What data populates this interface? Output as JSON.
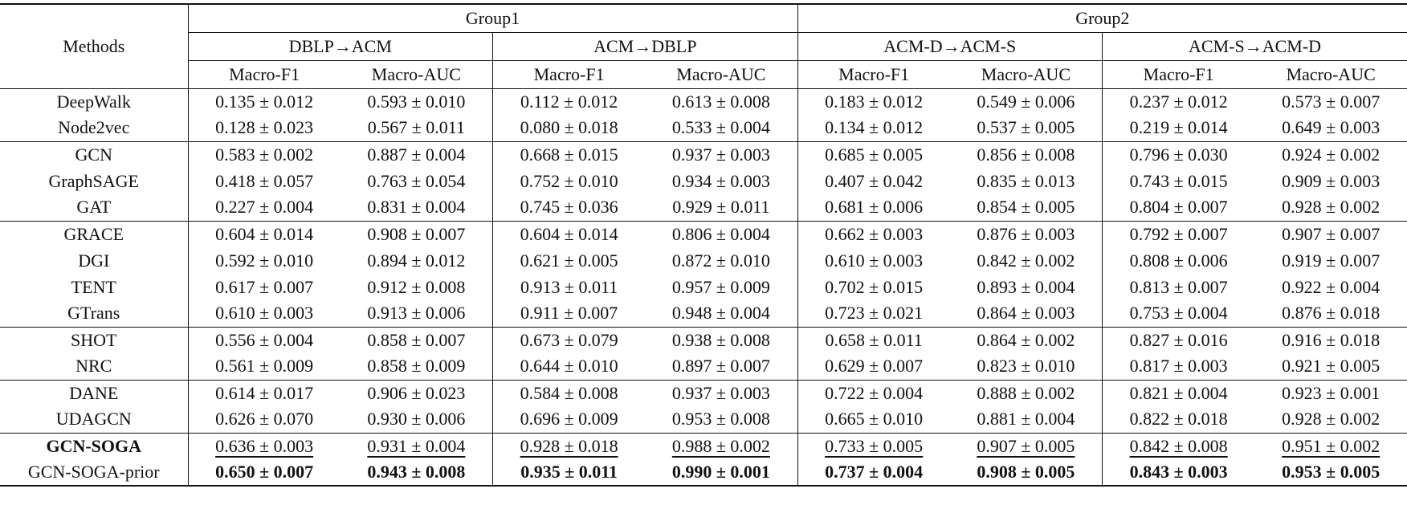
{
  "header": {
    "methods": "Methods",
    "groups": [
      {
        "label": "Group1",
        "tasks": [
          {
            "label": "DBLP→ACM",
            "metrics": [
              "Macro-F1",
              "Macro-AUC"
            ]
          },
          {
            "label": "ACM→DBLP",
            "metrics": [
              "Macro-F1",
              "Macro-AUC"
            ]
          }
        ]
      },
      {
        "label": "Group2",
        "tasks": [
          {
            "label": "ACM-D→ACM-S",
            "metrics": [
              "Macro-F1",
              "Macro-AUC"
            ]
          },
          {
            "label": "ACM-S→ACM-D",
            "metrics": [
              "Macro-F1",
              "Macro-AUC"
            ]
          }
        ]
      }
    ]
  },
  "sections": [
    [
      {
        "method": "DeepWalk",
        "cells": [
          "0.135 ± 0.012",
          "0.593 ± 0.010",
          "0.112 ± 0.012",
          "0.613 ± 0.008",
          "0.183 ± 0.012",
          "0.549 ± 0.006",
          "0.237 ± 0.012",
          "0.573 ± 0.007"
        ]
      },
      {
        "method": "Node2vec",
        "cells": [
          "0.128 ± 0.023",
          "0.567 ± 0.011",
          "0.080 ± 0.018",
          "0.533 ± 0.004",
          "0.134 ± 0.012",
          "0.537 ± 0.005",
          "0.219 ± 0.014",
          "0.649 ± 0.003"
        ]
      }
    ],
    [
      {
        "method": "GCN",
        "cells": [
          "0.583 ± 0.002",
          "0.887 ± 0.004",
          "0.668 ± 0.015",
          "0.937 ± 0.003",
          "0.685 ± 0.005",
          "0.856 ± 0.008",
          "0.796 ± 0.030",
          "0.924 ± 0.002"
        ]
      },
      {
        "method": "GraphSAGE",
        "cells": [
          "0.418 ± 0.057",
          "0.763 ± 0.054",
          "0.752 ± 0.010",
          "0.934 ± 0.003",
          "0.407 ± 0.042",
          "0.835 ± 0.013",
          "0.743 ± 0.015",
          "0.909 ± 0.003"
        ]
      },
      {
        "method": "GAT",
        "cells": [
          "0.227 ± 0.004",
          "0.831 ± 0.004",
          "0.745 ± 0.036",
          "0.929 ± 0.011",
          "0.681 ± 0.006",
          "0.854 ± 0.005",
          "0.804 ± 0.007",
          "0.928 ± 0.002"
        ]
      }
    ],
    [
      {
        "method": "GRACE",
        "cells": [
          "0.604 ± 0.014",
          "0.908 ± 0.007",
          "0.604 ± 0.014",
          "0.806 ± 0.004",
          "0.662 ± 0.003",
          "0.876 ± 0.003",
          "0.792 ± 0.007",
          "0.907 ± 0.007"
        ]
      },
      {
        "method": "DGI",
        "cells": [
          "0.592 ± 0.010",
          "0.894 ± 0.012",
          "0.621 ± 0.005",
          "0.872 ± 0.010",
          "0.610 ± 0.003",
          "0.842 ± 0.002",
          "0.808 ± 0.006",
          "0.919 ± 0.007"
        ]
      },
      {
        "method": "TENT",
        "cells": [
          "0.617 ± 0.007",
          "0.912 ± 0.008",
          "0.913 ± 0.011",
          "0.957 ± 0.009",
          "0.702 ± 0.015",
          "0.893 ± 0.004",
          "0.813 ± 0.007",
          "0.922 ± 0.004"
        ]
      },
      {
        "method": "GTrans",
        "cells": [
          "0.610 ± 0.003",
          "0.913 ± 0.006",
          "0.911 ± 0.007",
          "0.948 ± 0.004",
          "0.723 ± 0.021",
          "0.864 ± 0.003",
          "0.753 ± 0.004",
          "0.876 ± 0.018"
        ]
      }
    ],
    [
      {
        "method": "SHOT",
        "cells": [
          "0.556 ± 0.004",
          "0.858 ± 0.007",
          "0.673 ± 0.079",
          "0.938 ± 0.008",
          "0.658 ± 0.011",
          "0.864 ± 0.002",
          "0.827 ± 0.016",
          "0.916 ± 0.018"
        ]
      },
      {
        "method": "NRC",
        "cells": [
          "0.561 ± 0.009",
          "0.858 ± 0.009",
          "0.644 ± 0.010",
          "0.897 ± 0.007",
          "0.629 ± 0.007",
          "0.823 ± 0.010",
          "0.817 ± 0.003",
          "0.921 ± 0.005"
        ]
      }
    ],
    [
      {
        "method": "DANE",
        "cells": [
          "0.614 ± 0.017",
          "0.906 ± 0.023",
          "0.584 ± 0.008",
          "0.937 ± 0.003",
          "0.722 ± 0.004",
          "0.888 ± 0.002",
          "0.821 ± 0.004",
          "0.923 ± 0.001"
        ]
      },
      {
        "method": "UDAGCN",
        "cells": [
          "0.626 ± 0.070",
          "0.930 ± 0.006",
          "0.696 ± 0.009",
          "0.953 ± 0.008",
          "0.665 ± 0.010",
          "0.881 ± 0.004",
          "0.822 ± 0.018",
          "0.928 ± 0.002"
        ]
      }
    ],
    [
      {
        "method": "GCN-SOGA",
        "method_style": "bold",
        "cell_style": "underline",
        "cells": [
          "0.636 ± 0.003",
          "0.931 ± 0.004",
          "0.928 ± 0.018",
          "0.988 ± 0.002",
          "0.733 ± 0.005",
          "0.907 ± 0.005",
          "0.842 ± 0.008",
          "0.951 ± 0.002"
        ]
      },
      {
        "method": "GCN-SOGA-prior",
        "cell_style": "bold",
        "cells": [
          "0.650 ± 0.007",
          "0.943 ± 0.008",
          "0.935 ± 0.011",
          "0.990 ± 0.001",
          "0.737 ± 0.004",
          "0.908 ± 0.005",
          "0.843 ± 0.003",
          "0.953 ± 0.005"
        ]
      }
    ]
  ]
}
